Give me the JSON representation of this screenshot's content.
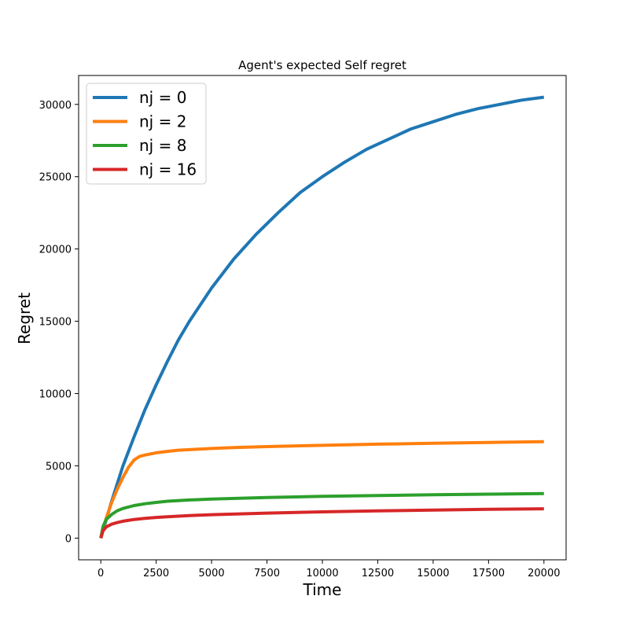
{
  "chart_data": {
    "type": "line",
    "title": "Agent's expected Self regret",
    "xlabel": "Time",
    "ylabel": "Regret",
    "xlim": [
      -1000,
      21000
    ],
    "ylim": [
      -1500,
      32000
    ],
    "xticks": [
      0,
      2500,
      5000,
      7500,
      10000,
      12500,
      15000,
      17500,
      20000
    ],
    "yticks": [
      0,
      5000,
      10000,
      15000,
      20000,
      25000,
      30000
    ],
    "grid": false,
    "legend_position": "top-left",
    "series": [
      {
        "name": "nj = 0",
        "color": "#1f77b4",
        "x": [
          0,
          500,
          1000,
          1500,
          2000,
          2500,
          3000,
          3500,
          4000,
          5000,
          6000,
          7000,
          8000,
          9000,
          10000,
          11000,
          12000,
          13000,
          14000,
          15000,
          16000,
          17000,
          18000,
          19000,
          20000
        ],
        "y": [
          0,
          2600,
          5000,
          7000,
          8900,
          10600,
          12200,
          13700,
          15000,
          17300,
          19300,
          21000,
          22500,
          23900,
          25000,
          26000,
          26900,
          27600,
          28300,
          28800,
          29300,
          29700,
          30000,
          30300,
          30500
        ]
      },
      {
        "name": "nj = 2",
        "color": "#ff7f0e",
        "x": [
          0,
          250,
          500,
          750,
          1000,
          1250,
          1500,
          1750,
          2000,
          2500,
          3000,
          3500,
          4000,
          5000,
          6000,
          7500,
          10000,
          12500,
          15000,
          17500,
          20000
        ],
        "y": [
          0,
          1400,
          2500,
          3400,
          4200,
          4900,
          5400,
          5650,
          5750,
          5900,
          6000,
          6080,
          6120,
          6200,
          6260,
          6330,
          6420,
          6500,
          6560,
          6620,
          6670
        ]
      },
      {
        "name": "nj = 8",
        "color": "#2ca02c",
        "x": [
          0,
          100,
          250,
          500,
          750,
          1000,
          1500,
          2000,
          2500,
          3000,
          4000,
          5000,
          7500,
          10000,
          12500,
          15000,
          17500,
          20000
        ],
        "y": [
          0,
          800,
          1300,
          1650,
          1900,
          2050,
          2250,
          2380,
          2470,
          2550,
          2640,
          2700,
          2810,
          2890,
          2950,
          3000,
          3040,
          3080
        ]
      },
      {
        "name": "nj = 16",
        "color": "#d62728",
        "x": [
          0,
          100,
          250,
          500,
          750,
          1000,
          1500,
          2000,
          2500,
          3000,
          4000,
          5000,
          7500,
          10000,
          12500,
          15000,
          17500,
          20000
        ],
        "y": [
          0,
          500,
          780,
          970,
          1080,
          1170,
          1290,
          1370,
          1430,
          1480,
          1560,
          1620,
          1730,
          1820,
          1880,
          1940,
          1990,
          2030
        ]
      }
    ]
  }
}
